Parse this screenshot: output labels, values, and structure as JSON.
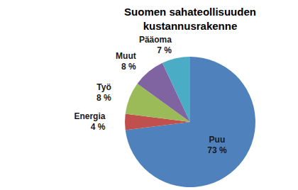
{
  "chart_data": {
    "type": "pie",
    "title": "Suomen sahateollisuuden kustannusrakenne",
    "categories": [
      "Puu",
      "Energia",
      "Työ",
      "Muut",
      "Pääoma"
    ],
    "values": [
      73,
      4,
      8,
      8,
      7
    ],
    "value_labels": [
      "73 %",
      "4 %",
      "8 %",
      "8 %",
      "7 %"
    ],
    "colors": [
      "#4f81bd",
      "#c0504d",
      "#9bbb59",
      "#8064a2",
      "#4bacc6"
    ],
    "data_labels": true
  }
}
